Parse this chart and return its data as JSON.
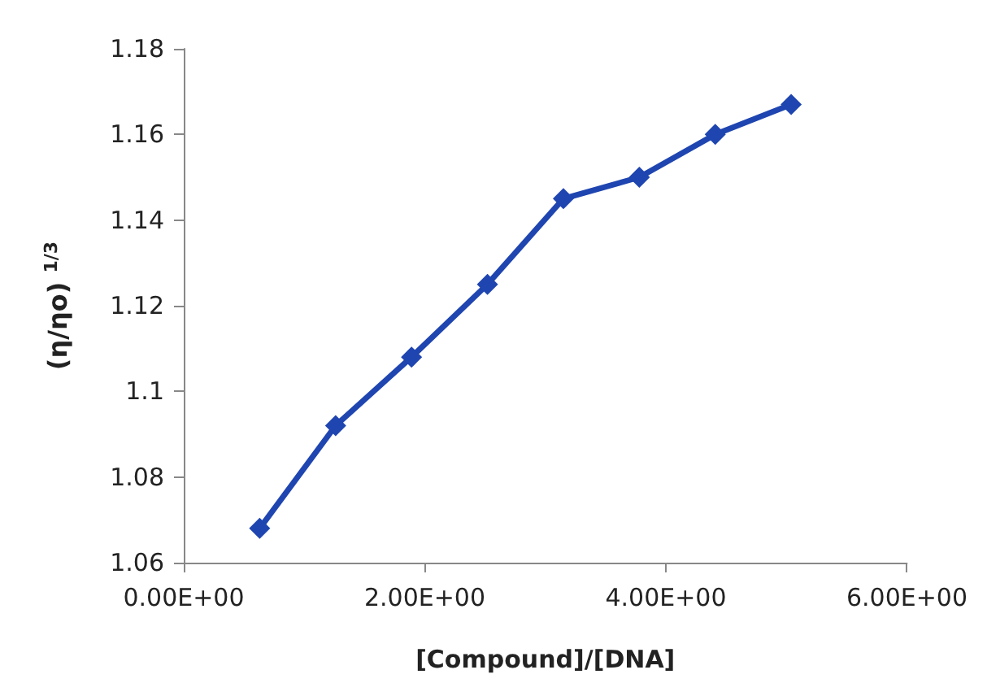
{
  "chart_data": {
    "type": "line",
    "xlabel": "[Compound]/[DNA]",
    "ylabel": "(η/ηo) $^{1/3}$",
    "x": [
      0.63,
      1.26,
      1.89,
      2.52,
      3.15,
      3.78,
      4.41,
      5.04
    ],
    "series": [
      {
        "color": "#1f45b0",
        "values": [
          1.068,
          1.092,
          1.108,
          1.125,
          1.145,
          1.15,
          1.16,
          1.167
        ]
      }
    ],
    "xlim": [
      0,
      6
    ],
    "xticks": [
      {
        "value": 0,
        "label": "0.00E+00"
      },
      {
        "value": 2,
        "label": "2.00E+00"
      },
      {
        "value": 4,
        "label": "4.00E+00"
      },
      {
        "value": 6,
        "label": "6.00E+00"
      }
    ],
    "ylim": [
      1.06,
      1.18
    ],
    "yticks": [
      1.06,
      1.08,
      1.1,
      1.12,
      1.14,
      1.16,
      1.18
    ],
    "grid": false,
    "marker": "diamond",
    "line_style": "solid"
  }
}
